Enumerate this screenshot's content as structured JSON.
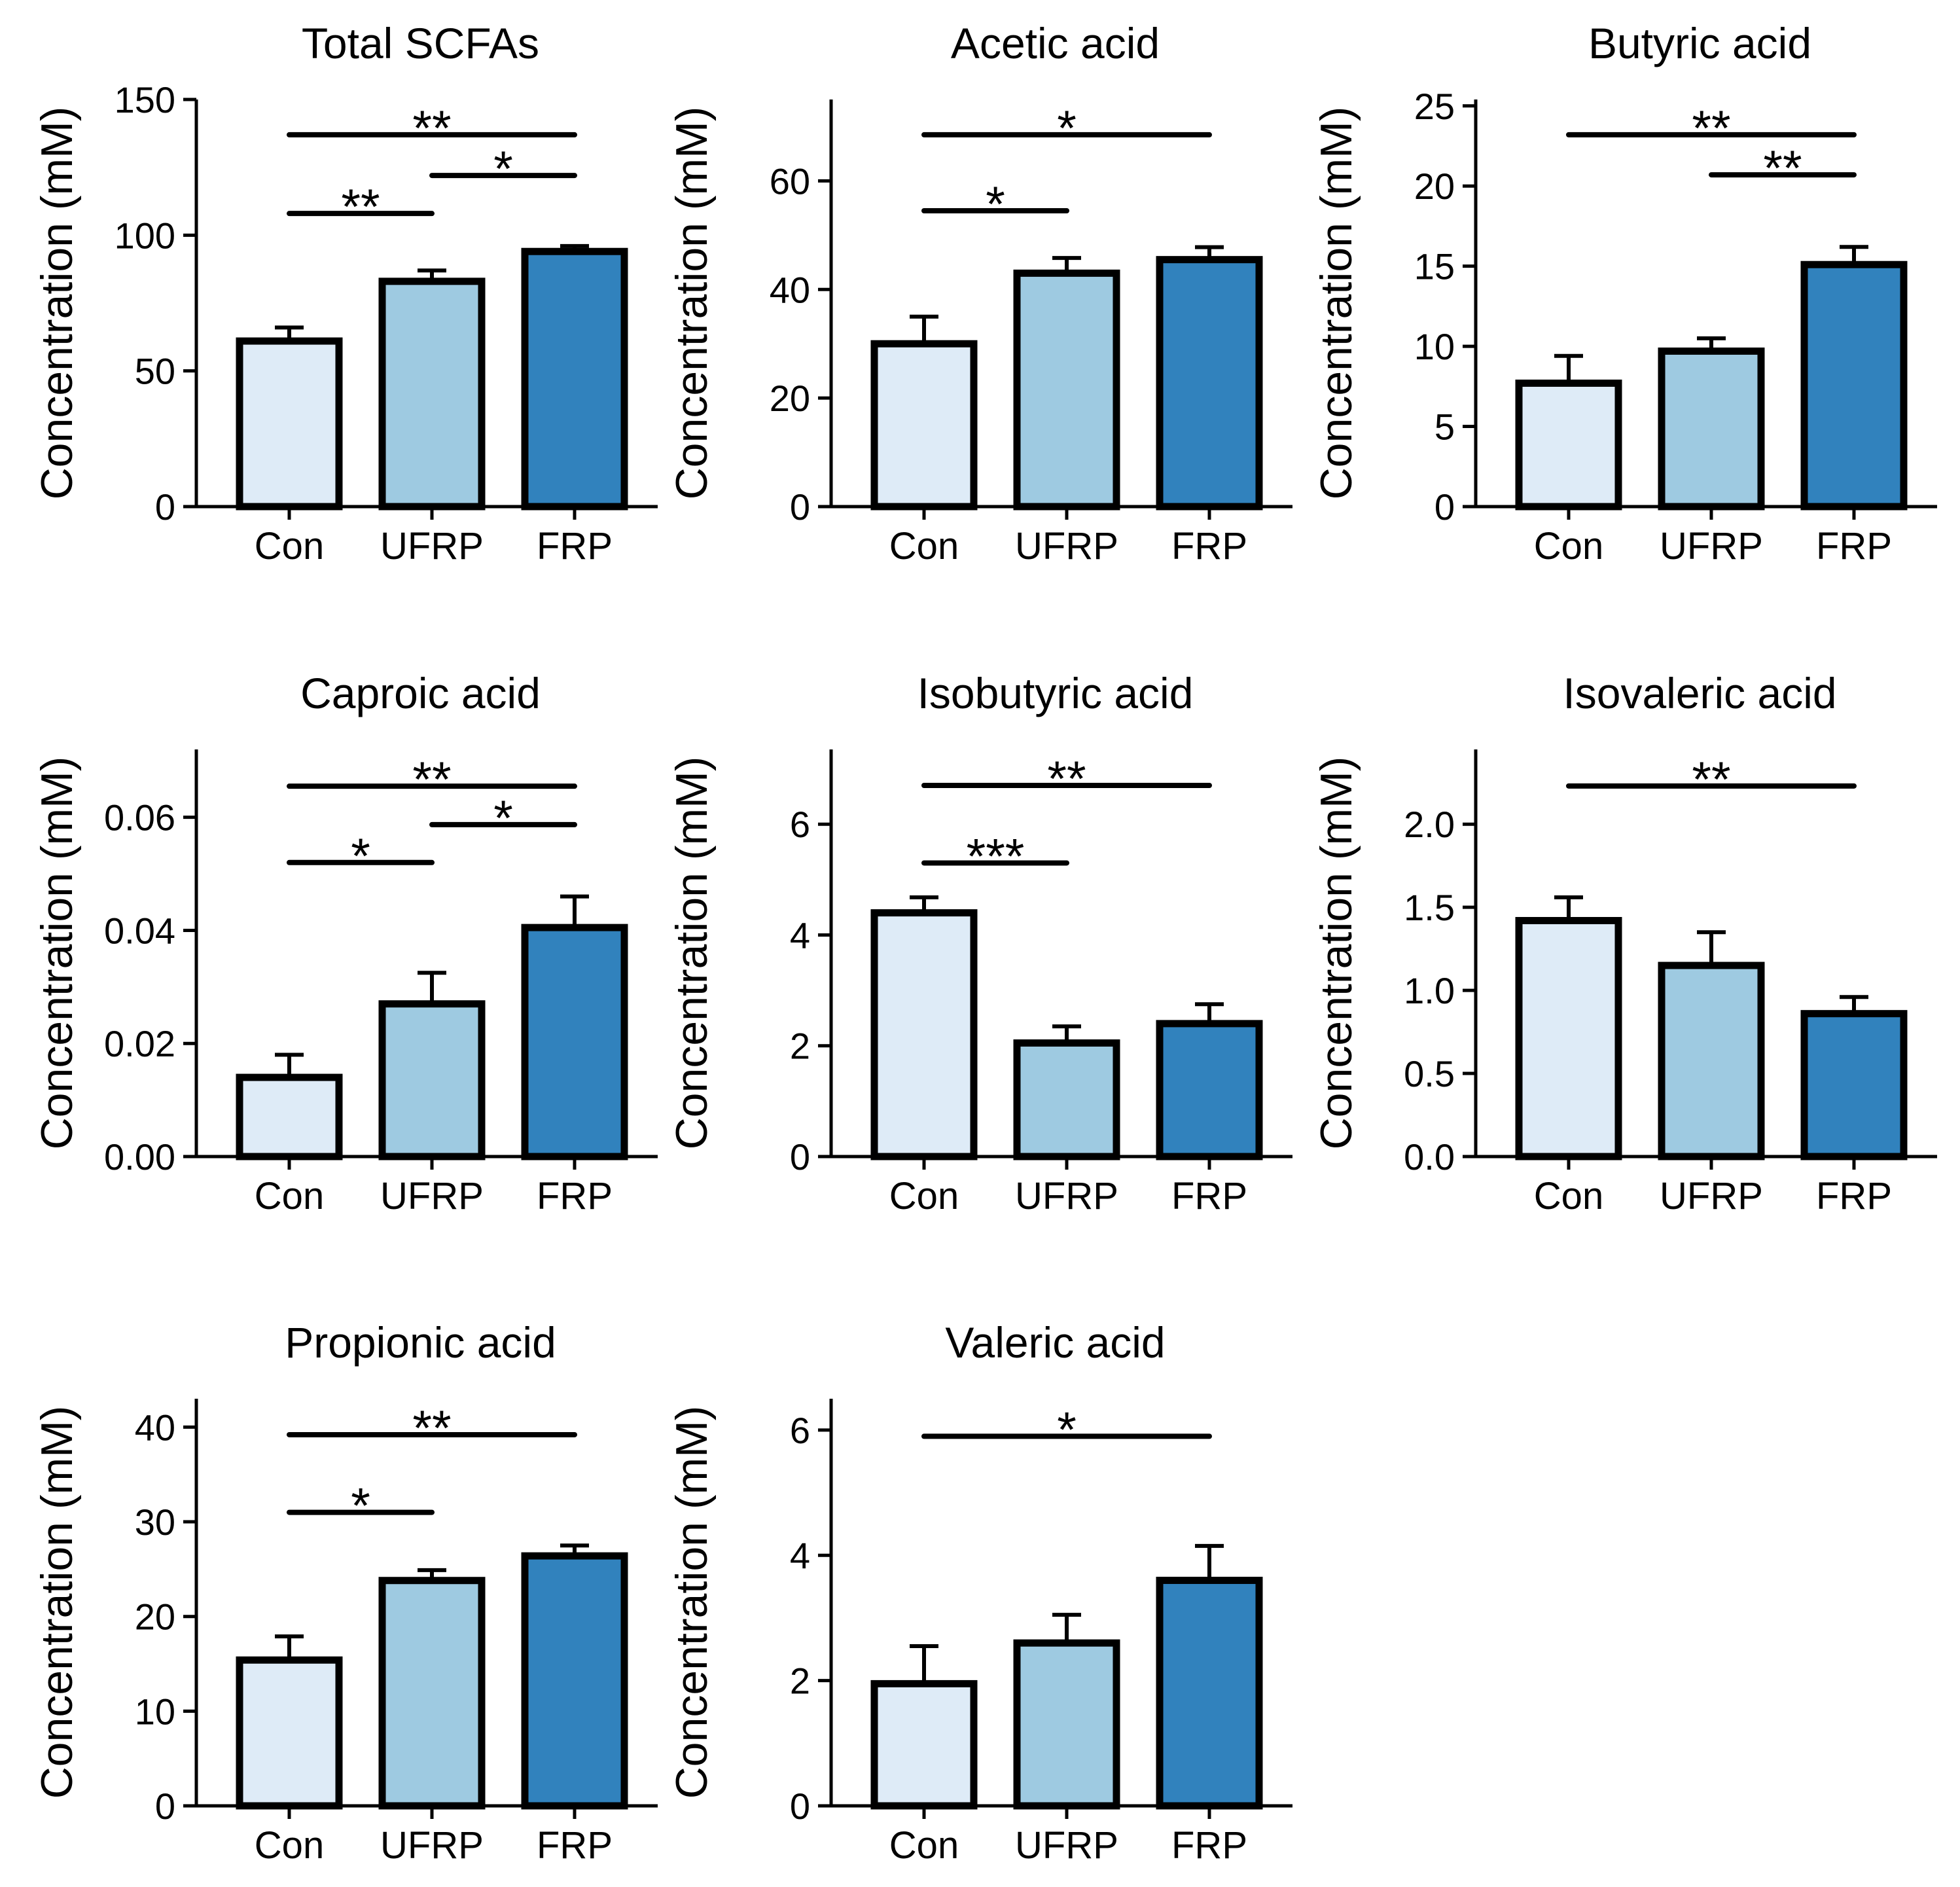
{
  "figure": {
    "ylabel": "Concentration (mM)",
    "groups": [
      "Con",
      "UFRP",
      "FRP"
    ],
    "colors": [
      "#deebf7",
      "#9ecae1",
      "#3182bd"
    ]
  },
  "chart_data": [
    {
      "type": "bar",
      "title": "Total SCFAs",
      "ylabel": "Concentration (mM)",
      "categories": [
        "Con",
        "UFRP",
        "FRP"
      ],
      "values": [
        61,
        83,
        94
      ],
      "errors": [
        5,
        4,
        2
      ],
      "ylim": [
        0,
        150
      ],
      "yticks": [
        0,
        50,
        100,
        150
      ],
      "tick_labels": [
        "0",
        "50",
        "100",
        "150"
      ],
      "significance": [
        {
          "from": 0,
          "to": 2,
          "y": 137,
          "label": "**"
        },
        {
          "from": 1,
          "to": 2,
          "y": 122,
          "label": "*"
        },
        {
          "from": 0,
          "to": 1,
          "y": 108,
          "label": "**"
        }
      ]
    },
    {
      "type": "bar",
      "title": "Acetic acid",
      "ylabel": "Concentration (mM)",
      "categories": [
        "Con",
        "UFRP",
        "FRP"
      ],
      "values": [
        30,
        43,
        45.5
      ],
      "errors": [
        5,
        2.8,
        2.3
      ],
      "ylim": [
        0,
        75
      ],
      "yticks": [
        0,
        20,
        40,
        60
      ],
      "tick_labels": [
        "0",
        "20",
        "40",
        "60"
      ],
      "significance": [
        {
          "from": 0,
          "to": 2,
          "y": 68.5,
          "label": "*"
        },
        {
          "from": 0,
          "to": 1,
          "y": 54.5,
          "label": "*"
        }
      ]
    },
    {
      "type": "bar",
      "title": "Butyric acid",
      "ylabel": "Concentration (mM)",
      "categories": [
        "Con",
        "UFRP",
        "FRP"
      ],
      "values": [
        7.7,
        9.7,
        15.1
      ],
      "errors": [
        1.7,
        0.8,
        1.1
      ],
      "ylim": [
        0,
        25.4
      ],
      "yticks": [
        0,
        5,
        10,
        15,
        20,
        25
      ],
      "tick_labels": [
        "0",
        "5",
        "10",
        "15",
        "20",
        "25"
      ],
      "significance": [
        {
          "from": 0,
          "to": 2,
          "y": 23.2,
          "label": "**"
        },
        {
          "from": 1,
          "to": 2,
          "y": 20.7,
          "label": "**"
        }
      ]
    },
    {
      "type": "bar",
      "title": "Caproic acid",
      "ylabel": "Concentration (mM)",
      "categories": [
        "Con",
        "UFRP",
        "FRP"
      ],
      "values": [
        0.014,
        0.027,
        0.0405
      ],
      "errors": [
        0.004,
        0.0055,
        0.0055
      ],
      "ylim": [
        0,
        0.072
      ],
      "yticks": [
        0,
        0.02,
        0.04,
        0.06
      ],
      "tick_labels": [
        "0.00",
        "0.02",
        "0.04",
        "0.06"
      ],
      "significance": [
        {
          "from": 0,
          "to": 2,
          "y": 0.0655,
          "label": "**"
        },
        {
          "from": 1,
          "to": 2,
          "y": 0.0587,
          "label": "*"
        },
        {
          "from": 0,
          "to": 1,
          "y": 0.052,
          "label": "*"
        }
      ]
    },
    {
      "type": "bar",
      "title": "Isobutyric acid",
      "ylabel": "Concentration (mM)",
      "categories": [
        "Con",
        "UFRP",
        "FRP"
      ],
      "values": [
        4.4,
        2.05,
        2.4
      ],
      "errors": [
        0.28,
        0.3,
        0.35
      ],
      "ylim": [
        0,
        7.35
      ],
      "yticks": [
        0,
        2,
        4,
        6
      ],
      "tick_labels": [
        "0",
        "2",
        "4",
        "6"
      ],
      "significance": [
        {
          "from": 0,
          "to": 2,
          "y": 6.7,
          "label": "**"
        },
        {
          "from": 0,
          "to": 1,
          "y": 5.3,
          "label": "***"
        }
      ]
    },
    {
      "type": "bar",
      "title": "Isovaleric acid",
      "ylabel": "Concentration (mM)",
      "categories": [
        "Con",
        "UFRP",
        "FRP"
      ],
      "values": [
        1.42,
        1.15,
        0.86
      ],
      "errors": [
        0.14,
        0.2,
        0.1
      ],
      "ylim": [
        0,
        2.45
      ],
      "yticks": [
        0,
        0.5,
        1,
        1.5,
        2
      ],
      "tick_labels": [
        "0.0",
        "0.5",
        "1.0",
        "1.5",
        "2.0"
      ],
      "significance": [
        {
          "from": 0,
          "to": 2,
          "y": 2.23,
          "label": "**"
        }
      ]
    },
    {
      "type": "bar",
      "title": "Propionic acid",
      "ylabel": "Concentration (mM)",
      "categories": [
        "Con",
        "UFRP",
        "FRP"
      ],
      "values": [
        15.4,
        23.8,
        26.4
      ],
      "errors": [
        2.5,
        1.1,
        1.1
      ],
      "ylim": [
        0,
        43
      ],
      "yticks": [
        0,
        10,
        20,
        30,
        40
      ],
      "tick_labels": [
        "0",
        "10",
        "20",
        "30",
        "40"
      ],
      "significance": [
        {
          "from": 0,
          "to": 2,
          "y": 39.2,
          "label": "**"
        },
        {
          "from": 0,
          "to": 1,
          "y": 31,
          "label": "*"
        }
      ]
    },
    {
      "type": "bar",
      "title": "Valeric acid",
      "ylabel": "Concentration (mM)",
      "categories": [
        "Con",
        "UFRP",
        "FRP"
      ],
      "values": [
        1.95,
        2.6,
        3.6
      ],
      "errors": [
        0.6,
        0.45,
        0.55
      ],
      "ylim": [
        0,
        6.5
      ],
      "yticks": [
        0,
        2,
        4,
        6
      ],
      "tick_labels": [
        "0",
        "2",
        "4",
        "6"
      ],
      "significance": [
        {
          "from": 0,
          "to": 2,
          "y": 5.9,
          "label": "*"
        }
      ]
    }
  ]
}
